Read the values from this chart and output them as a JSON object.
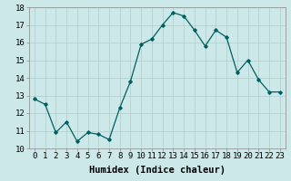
{
  "x": [
    0,
    1,
    2,
    3,
    4,
    5,
    6,
    7,
    8,
    9,
    10,
    11,
    12,
    13,
    14,
    15,
    16,
    17,
    18,
    19,
    20,
    21,
    22,
    23
  ],
  "y": [
    12.8,
    12.5,
    10.9,
    11.5,
    10.4,
    10.9,
    10.8,
    10.5,
    12.3,
    13.8,
    15.9,
    16.2,
    17.0,
    17.7,
    17.5,
    16.7,
    15.8,
    16.7,
    16.3,
    14.3,
    15.0,
    13.9,
    13.2,
    13.2
  ],
  "xlabel": "Humidex (Indice chaleur)",
  "ylim": [
    10,
    18
  ],
  "xlim_min": -0.5,
  "xlim_max": 23.5,
  "yticks": [
    10,
    11,
    12,
    13,
    14,
    15,
    16,
    17,
    18
  ],
  "xtick_labels": [
    "0",
    "1",
    "2",
    "3",
    "4",
    "5",
    "6",
    "7",
    "8",
    "9",
    "10",
    "11",
    "12",
    "13",
    "14",
    "15",
    "16",
    "17",
    "18",
    "19",
    "20",
    "21",
    "22",
    "23"
  ],
  "line_color": "#006060",
  "marker": "D",
  "marker_size": 1.8,
  "bg_color": "#cce8e8",
  "grid_color": "#b0cccc",
  "xlabel_fontsize": 7.5,
  "tick_fontsize": 6.5,
  "linewidth": 0.9
}
